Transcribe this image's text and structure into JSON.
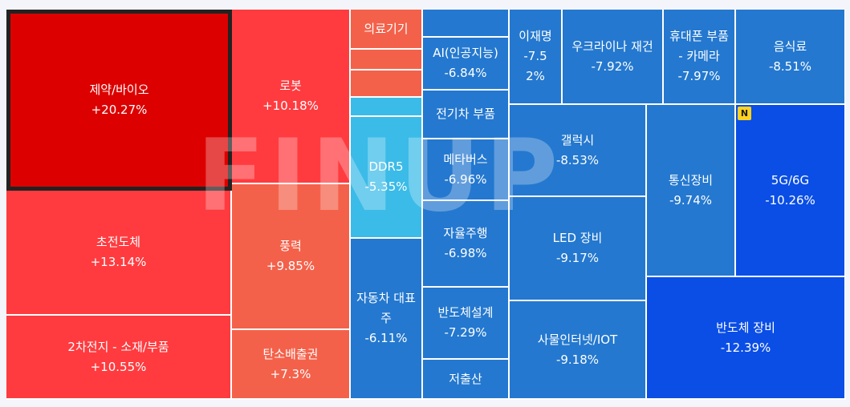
{
  "chart_data": {
    "type": "treemap",
    "watermark": "FINUP",
    "badge": "N",
    "items": [
      {
        "name": "제약/바이오",
        "change": "+20.27%",
        "value": 20.27,
        "selected": true,
        "color": "#dd0000"
      },
      {
        "name": "초전도체",
        "change": "+13.14%",
        "value": 13.14,
        "color": "#ff3b3f"
      },
      {
        "name": "2차전지 - 소재/부품",
        "change": "+10.55%",
        "value": 10.55,
        "color": "#ff3b3f"
      },
      {
        "name": "로봇",
        "change": "+10.18%",
        "value": 10.18,
        "color": "#ff3b3f"
      },
      {
        "name": "풍력",
        "change": "+9.85%",
        "value": 9.85,
        "color": "#f4614a"
      },
      {
        "name": "탄소배출권",
        "change": "+7.3%",
        "value": 7.3,
        "color": "#f4614a"
      },
      {
        "name": "의료기기",
        "change": "",
        "color": "#f4614a"
      },
      {
        "name": "",
        "change": "",
        "color": "#f4614a"
      },
      {
        "name": "",
        "change": "",
        "color": "#f4614a"
      },
      {
        "name": "",
        "change": "",
        "color": "#3bbbe8"
      },
      {
        "name": "DDR5",
        "change": "-5.35%",
        "value": -5.35,
        "color": "#3bbbe8"
      },
      {
        "name": "자동차 대표주",
        "change": "-6.11%",
        "value": -6.11,
        "color": "#2478cf"
      },
      {
        "name": "",
        "change": "",
        "color": "#2478cf"
      },
      {
        "name": "AI(인공지능)",
        "change": "-6.84%",
        "value": -6.84,
        "color": "#2478cf"
      },
      {
        "name": "전기차 부품",
        "change": "",
        "color": "#2478cf"
      },
      {
        "name": "메타버스",
        "change": "-6.96%",
        "value": -6.96,
        "color": "#2478cf"
      },
      {
        "name": "자율주행",
        "change": "-6.98%",
        "value": -6.98,
        "color": "#2478cf"
      },
      {
        "name": "반도체설계",
        "change": "-7.29%",
        "value": -7.29,
        "color": "#2478cf"
      },
      {
        "name": "저출산",
        "change": "",
        "color": "#2478cf"
      },
      {
        "name": "이재명",
        "change": "-7.52%",
        "value": -7.52,
        "color": "#2478cf"
      },
      {
        "name": "우크라이나 재건",
        "change": "-7.92%",
        "value": -7.92,
        "color": "#2478cf"
      },
      {
        "name": "휴대폰 부품 - 카메라",
        "change": "-7.97%",
        "value": -7.97,
        "color": "#2478cf"
      },
      {
        "name": "음식료",
        "change": "-8.51%",
        "value": -8.51,
        "color": "#2478cf"
      },
      {
        "name": "갤럭시",
        "change": "-8.53%",
        "value": -8.53,
        "color": "#2478cf"
      },
      {
        "name": "LED 장비",
        "change": "-9.17%",
        "value": -9.17,
        "color": "#2478cf"
      },
      {
        "name": "사물인터넷/IOT",
        "change": "-9.18%",
        "value": -9.18,
        "color": "#2478cf"
      },
      {
        "name": "통신장비",
        "change": "-9.74%",
        "value": -9.74,
        "color": "#2478cf"
      },
      {
        "name": "5G/6G",
        "change": "-10.26%",
        "value": -10.26,
        "color": "#0a4ee6"
      },
      {
        "name": "반도체 장비",
        "change": "-12.39%",
        "value": -12.39,
        "color": "#0a4ee6"
      }
    ]
  }
}
